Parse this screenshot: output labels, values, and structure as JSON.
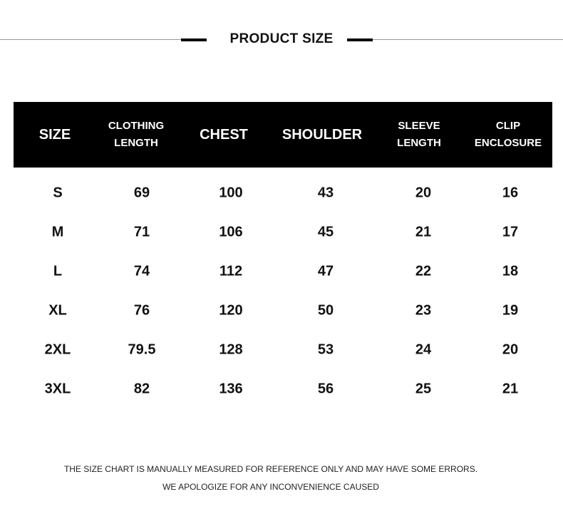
{
  "title": "PRODUCT SIZE",
  "table": {
    "headers": [
      "SIZE",
      "CLOTHING\nLENGTH",
      "CHEST",
      "SHOULDER",
      "SLEEVE\nLENGTH",
      "CLIP\nENCLOSURE"
    ],
    "rows": [
      [
        "S",
        "69",
        "100",
        "43",
        "20",
        "16"
      ],
      [
        "M",
        "71",
        "106",
        "45",
        "21",
        "17"
      ],
      [
        "L",
        "74",
        "112",
        "47",
        "22",
        "18"
      ],
      [
        "XL",
        "76",
        "120",
        "50",
        "23",
        "19"
      ],
      [
        "2XL",
        "79.5",
        "128",
        "53",
        "24",
        "20"
      ],
      [
        "3XL",
        "82",
        "136",
        "56",
        "25",
        "21"
      ]
    ]
  },
  "notes": [
    "THE SIZE CHART IS MANUALLY MEASURED FOR REFERENCE ONLY AND MAY HAVE SOME ERRORS.",
    "WE APOLOGIZE FOR ANY INCONVENIENCE CAUSED"
  ]
}
